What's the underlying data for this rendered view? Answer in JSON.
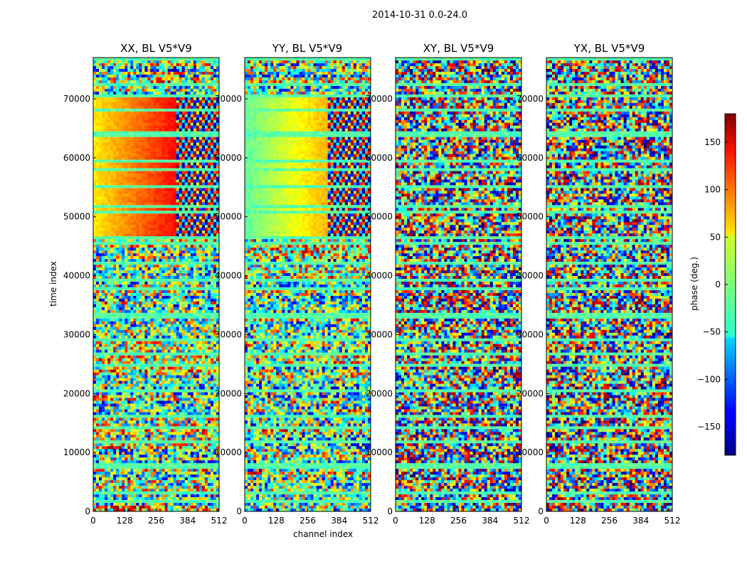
{
  "figure_title": "2014-10-31 0.0-24.0",
  "xlabel": "channel index",
  "ylabel": "time index",
  "colorbar_label": "phase (deg.)",
  "chart_data": {
    "type": "heatmap",
    "panels": [
      {
        "title": "XX, BL V5*V9"
      },
      {
        "title": "YY, BL V5*V9"
      },
      {
        "title": "XY, BL V5*V9"
      },
      {
        "title": "YX, BL V5*V9"
      }
    ],
    "x_ticks": [
      "0",
      "128",
      "256",
      "384",
      "512"
    ],
    "x_tick_values": [
      0,
      128,
      256,
      384,
      512
    ],
    "xlim": [
      0,
      512
    ],
    "y_ticks": [
      "0",
      "10000",
      "20000",
      "30000",
      "40000",
      "50000",
      "60000",
      "70000"
    ],
    "y_tick_values": [
      0,
      10000,
      20000,
      30000,
      40000,
      50000,
      60000,
      70000
    ],
    "ylim": [
      0,
      77000
    ],
    "colorbar": {
      "vmin": -180,
      "vmax": 180,
      "ticks": [
        "−150",
        "−100",
        "−50",
        "0",
        "50",
        "100",
        "150"
      ],
      "tick_values": [
        -150,
        -100,
        -50,
        0,
        50,
        100,
        150
      ],
      "colormap": "jet"
    }
  }
}
